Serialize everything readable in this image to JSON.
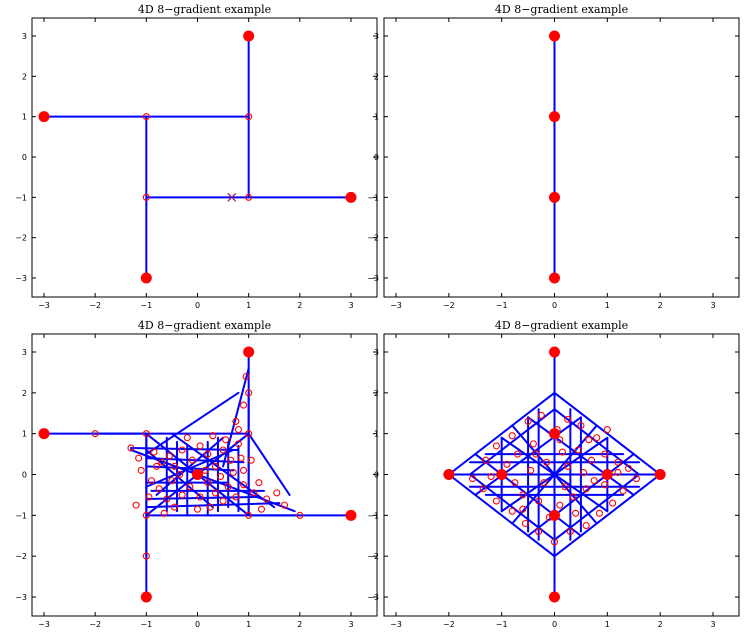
{
  "chart_data": [
    {
      "type": "scatter",
      "title": "4D 8−gradient example",
      "xlim": [
        -3,
        3
      ],
      "ylim": [
        -3,
        3
      ],
      "xticks": [
        "−3",
        "−2",
        "−1",
        "0",
        "1",
        "2",
        "3"
      ],
      "yticks": [
        "−3",
        "−2",
        "−1",
        "0",
        "1",
        "2",
        "3"
      ],
      "grid": false,
      "segments": [
        [
          [
            -3,
            1
          ],
          [
            1,
            1
          ]
        ],
        [
          [
            1,
            1
          ],
          [
            1,
            3
          ]
        ],
        [
          [
            -1,
            1
          ],
          [
            -1,
            -3
          ]
        ],
        [
          [
            -1,
            -1
          ],
          [
            3,
            -1
          ]
        ],
        [
          [
            1,
            1
          ],
          [
            1,
            -1
          ]
        ]
      ],
      "large_points": [
        [
          -3,
          1
        ],
        [
          1,
          3
        ],
        [
          -1,
          -3
        ],
        [
          3,
          -1
        ]
      ],
      "small_points": [
        [
          -1,
          1
        ],
        [
          1,
          1
        ],
        [
          -1,
          -1
        ],
        [
          1,
          -1
        ]
      ],
      "x_markers": [
        [
          0.67,
          -1
        ]
      ]
    },
    {
      "type": "scatter",
      "title": "4D 8−gradient example",
      "xlim": [
        -3,
        3
      ],
      "ylim": [
        -3,
        3
      ],
      "xticks": [
        "−3",
        "−2",
        "−1",
        "0",
        "1",
        "2",
        "3"
      ],
      "yticks": [
        "−3",
        "−2",
        "−1",
        "0",
        "1",
        "2",
        "3"
      ],
      "grid": false,
      "segments": [
        [
          [
            0,
            3
          ],
          [
            0,
            -3
          ]
        ]
      ],
      "large_points": [
        [
          0,
          3
        ],
        [
          0,
          1
        ],
        [
          0,
          -1
        ],
        [
          0,
          -3
        ]
      ],
      "small_points": [
        [
          0,
          1
        ],
        [
          0,
          -1
        ]
      ],
      "x_markers": []
    },
    {
      "type": "scatter",
      "title": "4D 8−gradient example",
      "xlim": [
        -3,
        3
      ],
      "ylim": [
        -3,
        3
      ],
      "xticks": [
        "−3",
        "−2",
        "−1",
        "0",
        "1",
        "2",
        "3"
      ],
      "yticks": [
        "−3",
        "−2",
        "−1",
        "0",
        "1",
        "2",
        "3"
      ],
      "grid": false,
      "segments": [
        [
          [
            -3,
            1
          ],
          [
            -1,
            1
          ]
        ],
        [
          [
            -1,
            1
          ],
          [
            -1,
            -3
          ]
        ],
        [
          [
            1,
            3
          ],
          [
            1,
            -1
          ]
        ],
        [
          [
            1,
            -1
          ],
          [
            3,
            -1
          ]
        ],
        [
          [
            -2,
            1
          ],
          [
            -1,
            1
          ]
        ],
        [
          [
            -1,
            -2
          ],
          [
            -1,
            -1
          ]
        ],
        [
          [
            1,
            2
          ],
          [
            1,
            1
          ]
        ],
        [
          [
            2,
            -1
          ],
          [
            1,
            -1
          ]
        ],
        [
          [
            -1,
            1
          ],
          [
            1,
            1
          ]
        ],
        [
          [
            -1,
            -1
          ],
          [
            1,
            -1
          ]
        ],
        [
          [
            -1,
            1
          ],
          [
            -1,
            -1
          ]
        ],
        [
          [
            1,
            1
          ],
          [
            1,
            -1
          ]
        ],
        [
          [
            -1.3,
            0.65
          ],
          [
            0.8,
            0.6
          ]
        ],
        [
          [
            -1,
            0.4
          ],
          [
            0.9,
            0.3
          ]
        ],
        [
          [
            -1,
            0.2
          ],
          [
            0.7,
            0.1
          ]
        ],
        [
          [
            -1,
            -0.2
          ],
          [
            0.6,
            -0.2
          ]
        ],
        [
          [
            -0.9,
            -0.4
          ],
          [
            1.3,
            -0.4
          ]
        ],
        [
          [
            -1,
            -0.6
          ],
          [
            1.2,
            -0.55
          ]
        ],
        [
          [
            -1,
            -0.8
          ],
          [
            1.6,
            -0.7
          ]
        ],
        [
          [
            -0.6,
            0.9
          ],
          [
            -0.6,
            -0.9
          ]
        ],
        [
          [
            -0.4,
            0.8
          ],
          [
            -0.4,
            -0.9
          ]
        ],
        [
          [
            -0.2,
            0.7
          ],
          [
            -0.2,
            -1
          ]
        ],
        [
          [
            0.2,
            0.8
          ],
          [
            0.2,
            -1
          ]
        ],
        [
          [
            0.4,
            0.9
          ],
          [
            0.4,
            -0.9
          ]
        ],
        [
          [
            0.6,
            0.8
          ],
          [
            0.6,
            -0.8
          ]
        ],
        [
          [
            0.8,
            0.7
          ],
          [
            0.8,
            -0.9
          ]
        ],
        [
          [
            -1,
            1
          ],
          [
            1,
            -1
          ]
        ],
        [
          [
            -1,
            -1
          ],
          [
            1,
            1
          ]
        ],
        [
          [
            -0.5,
            1
          ],
          [
            1.5,
            -0.8
          ]
        ],
        [
          [
            -1,
            0.5
          ],
          [
            0.8,
            2
          ]
        ],
        [
          [
            1,
            1
          ],
          [
            1.8,
            -0.5
          ]
        ],
        [
          [
            -0.8,
            -0.5
          ],
          [
            0.5,
            0.9
          ]
        ],
        [
          [
            -1,
            0.6
          ],
          [
            0.3,
            -0.8
          ]
        ],
        [
          [
            0,
            0
          ],
          [
            1.9,
            -0.9
          ]
        ],
        [
          [
            0,
            0
          ],
          [
            -1.3,
            0.6
          ]
        ],
        [
          [
            0.5,
            0.2
          ],
          [
            1,
            2.6
          ]
        ],
        [
          [
            -1,
            -0.3
          ],
          [
            0.7,
            0.6
          ]
        ]
      ],
      "large_points": [
        [
          -3,
          1
        ],
        [
          1,
          3
        ],
        [
          -1,
          -3
        ],
        [
          3,
          -1
        ],
        [
          0,
          0
        ]
      ],
      "small_points": [
        [
          -2,
          1
        ],
        [
          -1,
          1
        ],
        [
          1,
          1
        ],
        [
          -1,
          -1
        ],
        [
          1,
          -1
        ],
        [
          -1,
          -2
        ],
        [
          2,
          -1
        ],
        [
          1,
          2
        ],
        [
          -1.3,
          0.65
        ],
        [
          -1.15,
          0.4
        ],
        [
          -0.85,
          0.55
        ],
        [
          -0.7,
          0.3
        ],
        [
          -0.55,
          0.45
        ],
        [
          -0.45,
          0.2
        ],
        [
          -0.3,
          0.6
        ],
        [
          -0.1,
          0.35
        ],
        [
          0.05,
          0.7
        ],
        [
          0.2,
          0.5
        ],
        [
          0.35,
          0.2
        ],
        [
          0.5,
          0.6
        ],
        [
          0.65,
          0.35
        ],
        [
          0.8,
          0.75
        ],
        [
          0.85,
          0.4
        ],
        [
          0.9,
          0.1
        ],
        [
          0.75,
          1.3
        ],
        [
          0.9,
          1.7
        ],
        [
          0.95,
          2.4
        ],
        [
          0.8,
          1.1
        ],
        [
          -1.1,
          0.1
        ],
        [
          -0.9,
          -0.15
        ],
        [
          -0.75,
          -0.35
        ],
        [
          -0.6,
          -0.6
        ],
        [
          -0.45,
          -0.8
        ],
        [
          -0.3,
          -0.5
        ],
        [
          -0.15,
          -0.3
        ],
        [
          0.05,
          -0.55
        ],
        [
          0.2,
          -0.2
        ],
        [
          0.35,
          -0.45
        ],
        [
          0.5,
          -0.65
        ],
        [
          0.6,
          -0.3
        ],
        [
          0.75,
          -0.55
        ],
        [
          0.9,
          -0.25
        ],
        [
          1.1,
          -0.45
        ],
        [
          1.2,
          -0.2
        ],
        [
          1.35,
          -0.6
        ],
        [
          1.55,
          -0.45
        ],
        [
          1.7,
          -0.75
        ],
        [
          1.25,
          -0.85
        ],
        [
          -0.65,
          -0.95
        ],
        [
          -0.95,
          -0.55
        ],
        [
          -0.35,
          0.0
        ],
        [
          0.15,
          0.1
        ],
        [
          0.45,
          -0.05
        ],
        [
          -0.5,
          -0.15
        ],
        [
          0.55,
          0.85
        ],
        [
          0.3,
          0.95
        ],
        [
          -0.2,
          0.9
        ],
        [
          0.7,
          0.05
        ],
        [
          1.05,
          0.35
        ],
        [
          -0.8,
          0.2
        ],
        [
          0.0,
          -0.85
        ],
        [
          0.25,
          -0.8
        ],
        [
          -1.2,
          -0.75
        ]
      ],
      "x_markers": []
    },
    {
      "type": "scatter",
      "title": "4D 8−gradient example",
      "xlim": [
        -3,
        3
      ],
      "ylim": [
        -3,
        3
      ],
      "xticks": [
        "−3",
        "−2",
        "−1",
        "0",
        "1",
        "2",
        "3"
      ],
      "yticks": [
        "−3",
        "−2",
        "−1",
        "0",
        "1",
        "2",
        "3"
      ],
      "grid": false,
      "segments": [
        [
          [
            0,
            3
          ],
          [
            0,
            -3
          ]
        ],
        [
          [
            -2,
            0
          ],
          [
            2,
            0
          ]
        ],
        [
          [
            0,
            2
          ],
          [
            2,
            0
          ]
        ],
        [
          [
            2,
            0
          ],
          [
            0,
            -2
          ]
        ],
        [
          [
            0,
            -2
          ],
          [
            -2,
            0
          ]
        ],
        [
          [
            -2,
            0
          ],
          [
            0,
            2
          ]
        ],
        [
          [
            0,
            1.6
          ],
          [
            1.6,
            0
          ]
        ],
        [
          [
            1.6,
            0
          ],
          [
            0,
            -1.6
          ]
        ],
        [
          [
            0,
            -1.6
          ],
          [
            -1.6,
            0
          ]
        ],
        [
          [
            -1.6,
            0
          ],
          [
            0,
            1.6
          ]
        ],
        [
          [
            -0.5,
            1.4
          ],
          [
            -0.5,
            -1.4
          ]
        ],
        [
          [
            0.5,
            1.4
          ],
          [
            0.5,
            -1.4
          ]
        ],
        [
          [
            -1,
            0.9
          ],
          [
            -1,
            -0.9
          ]
        ],
        [
          [
            1,
            0.9
          ],
          [
            1,
            -0.9
          ]
        ],
        [
          [
            -1.3,
            0.5
          ],
          [
            1.3,
            0.5
          ]
        ],
        [
          [
            -1.3,
            -0.5
          ],
          [
            1.3,
            -0.5
          ]
        ],
        [
          [
            -1,
            0.9
          ],
          [
            1,
            -0.9
          ]
        ],
        [
          [
            -1,
            -0.9
          ],
          [
            1,
            0.9
          ]
        ],
        [
          [
            -0.5,
            1.4
          ],
          [
            1.5,
            -0.5
          ]
        ],
        [
          [
            0.5,
            1.4
          ],
          [
            -1.5,
            -0.5
          ]
        ],
        [
          [
            -1.5,
            0.5
          ],
          [
            0.5,
            -1.5
          ]
        ],
        [
          [
            1.5,
            0.5
          ],
          [
            -0.5,
            -1.5
          ]
        ],
        [
          [
            -0.3,
            1.6
          ],
          [
            -0.3,
            -1.6
          ]
        ],
        [
          [
            0.3,
            1.6
          ],
          [
            0.3,
            -1.6
          ]
        ],
        [
          [
            -1.6,
            0.3
          ],
          [
            1.6,
            0.3
          ]
        ],
        [
          [
            -1.6,
            -0.3
          ],
          [
            1.6,
            -0.3
          ]
        ],
        [
          [
            -0.8,
            1.2
          ],
          [
            0.8,
            -1.2
          ]
        ],
        [
          [
            0.8,
            1.2
          ],
          [
            -0.8,
            -1.2
          ]
        ],
        [
          [
            -1,
            0
          ],
          [
            1,
            0
          ]
        ]
      ],
      "large_points": [
        [
          0,
          3
        ],
        [
          0,
          -3
        ],
        [
          -2,
          0
        ],
        [
          2,
          0
        ],
        [
          -1,
          0
        ],
        [
          1,
          0
        ],
        [
          0,
          1
        ],
        [
          0,
          -1
        ]
      ],
      "small_points": [
        [
          -0.5,
          1.3
        ],
        [
          -0.25,
          1.45
        ],
        [
          0.25,
          1.35
        ],
        [
          0.5,
          1.2
        ],
        [
          0.8,
          0.9
        ],
        [
          1.0,
          1.1
        ],
        [
          -0.8,
          0.95
        ],
        [
          -1.1,
          0.7
        ],
        [
          -1.3,
          0.35
        ],
        [
          -0.7,
          0.5
        ],
        [
          -0.4,
          0.75
        ],
        [
          0.1,
          0.85
        ],
        [
          0.45,
          0.6
        ],
        [
          0.7,
          0.35
        ],
        [
          0.95,
          0.5
        ],
        [
          1.2,
          0.3
        ],
        [
          1.4,
          0.15
        ],
        [
          1.55,
          -0.1
        ],
        [
          1.3,
          -0.4
        ],
        [
          1.1,
          -0.7
        ],
        [
          0.85,
          -0.95
        ],
        [
          0.6,
          -1.25
        ],
        [
          0.3,
          -1.4
        ],
        [
          0,
          -1.65
        ],
        [
          -0.3,
          -1.4
        ],
        [
          -0.55,
          -1.2
        ],
        [
          -0.8,
          -0.9
        ],
        [
          -1.1,
          -0.65
        ],
        [
          -1.35,
          -0.35
        ],
        [
          -1.55,
          -0.1
        ],
        [
          -0.6,
          -0.5
        ],
        [
          -0.3,
          -0.65
        ],
        [
          0.1,
          -0.75
        ],
        [
          0.35,
          -0.55
        ],
        [
          0.6,
          -0.35
        ],
        [
          0.2,
          -0.3
        ],
        [
          -0.2,
          -0.2
        ],
        [
          -0.45,
          0.1
        ],
        [
          -0.15,
          0.3
        ],
        [
          0.25,
          0.2
        ],
        [
          0.55,
          0.05
        ],
        [
          0.75,
          -0.15
        ],
        [
          -0.75,
          -0.2
        ],
        [
          -0.9,
          0.25
        ],
        [
          0.15,
          0.55
        ],
        [
          -0.35,
          0.5
        ],
        [
          0.4,
          -0.95
        ],
        [
          -0.1,
          -1.05
        ],
        [
          0.95,
          -0.25
        ],
        [
          1.2,
          0.05
        ],
        [
          -1.2,
          -0.05
        ],
        [
          0.05,
          1.1
        ],
        [
          -0.6,
          -0.85
        ],
        [
          0.65,
          0.85
        ]
      ],
      "x_markers": []
    }
  ]
}
